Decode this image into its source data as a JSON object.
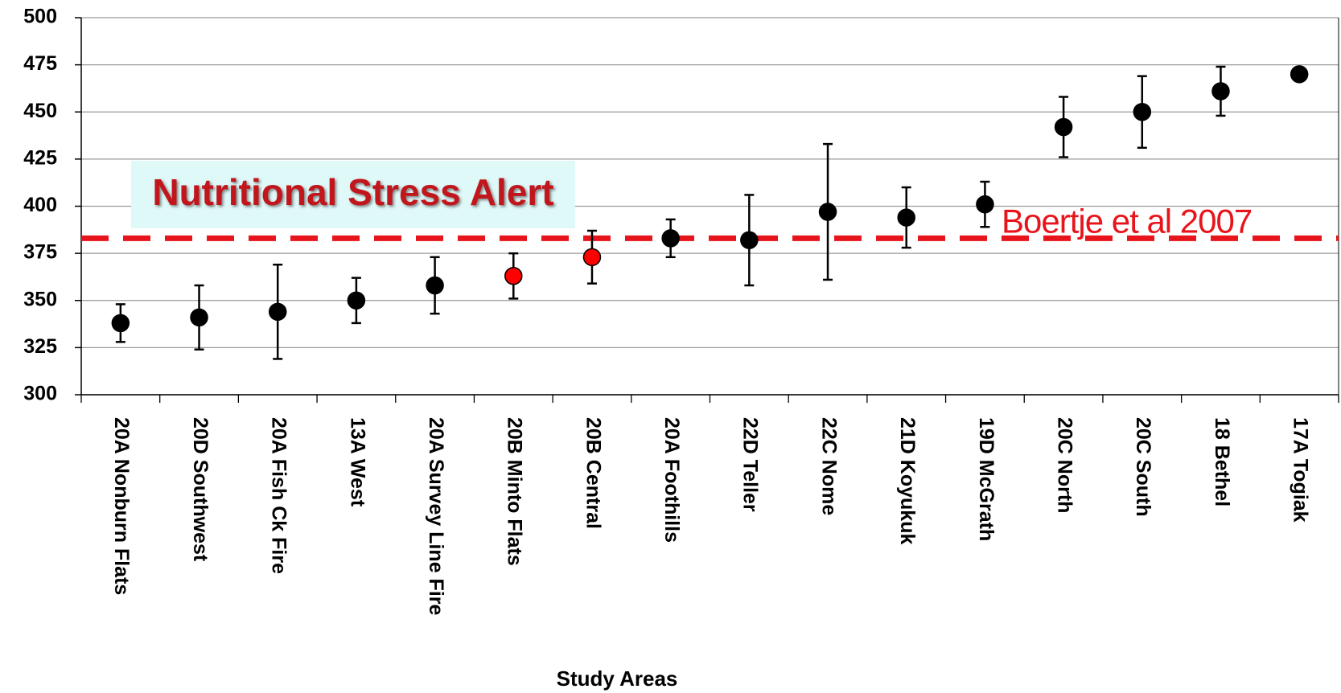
{
  "chart_data": {
    "type": "errorbar",
    "x_label": "Study Areas",
    "categories": [
      "20A Nonburn Flats",
      "20D Southwest",
      "20A Fish Ck Fire",
      "13A West",
      "20A Survey Line Fire",
      "20B Minto Flats",
      "20B Central",
      "20A Foothills",
      "22D Teller",
      "22C Nome",
      "21D Koyukuk",
      "19D McGrath",
      "20C North",
      "20C South",
      "18 Bethel",
      "17A Togiak"
    ],
    "values": [
      338,
      341,
      344,
      350,
      358,
      363,
      373,
      383,
      382,
      397,
      394,
      401,
      442,
      450,
      461,
      470
    ],
    "errors": [
      10,
      17,
      25,
      12,
      15,
      12,
      14,
      10,
      24,
      36,
      16,
      12,
      16,
      19,
      13,
      null
    ],
    "point_colors": [
      "#000000",
      "#000000",
      "#000000",
      "#000000",
      "#000000",
      "#ff0000",
      "#ff0000",
      "#000000",
      "#000000",
      "#000000",
      "#000000",
      "#000000",
      "#000000",
      "#000000",
      "#000000",
      "#000000"
    ],
    "ylim": [
      300,
      500
    ],
    "yticks": [
      300,
      325,
      350,
      375,
      400,
      425,
      450,
      475,
      500
    ],
    "grid": true,
    "reference_line": {
      "value": 383,
      "label": "Boertje et al 2007",
      "color": "#e8141b"
    },
    "alert_label": "Nutritional Stress Alert"
  }
}
